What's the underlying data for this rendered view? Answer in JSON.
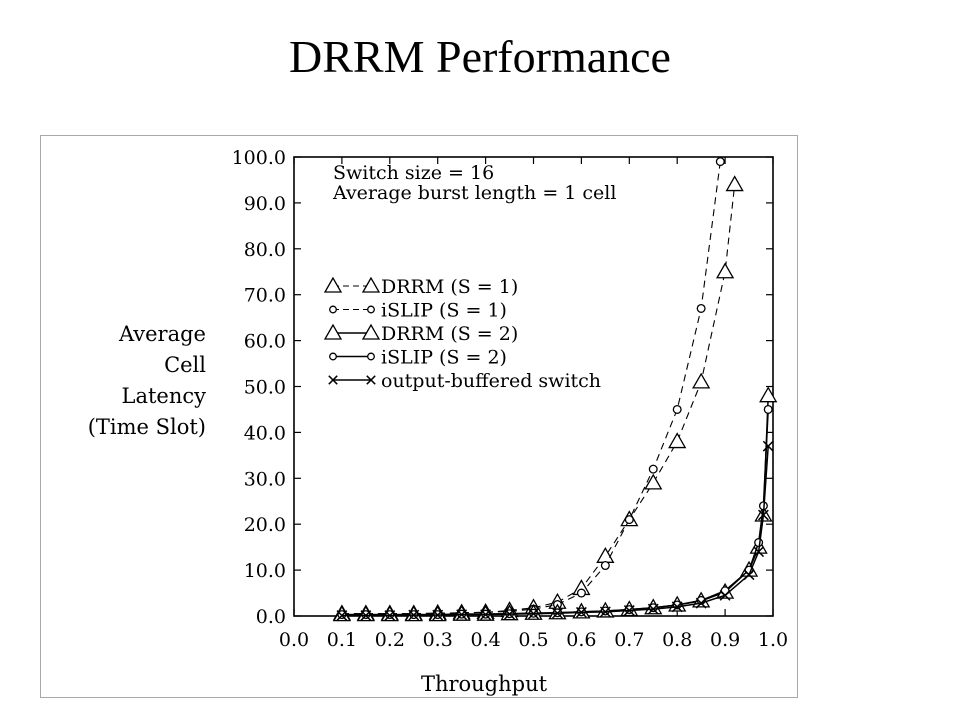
{
  "slide": {
    "title": "DRRM Performance"
  },
  "chart_data": {
    "type": "line",
    "title": "",
    "xlabel": "Throughput",
    "ylabel_lines": [
      "Average",
      "Cell",
      "Latency",
      "(Time Slot)"
    ],
    "xlim": [
      0.0,
      1.0
    ],
    "ylim": [
      0.0,
      100.0
    ],
    "x_ticks": [
      "0.0",
      "0.1",
      "0.2",
      "0.3",
      "0.4",
      "0.5",
      "0.6",
      "0.7",
      "0.8",
      "0.9",
      "1.0"
    ],
    "y_ticks": [
      "0.0",
      "10.0",
      "20.0",
      "30.0",
      "40.0",
      "50.0",
      "60.0",
      "70.0",
      "80.0",
      "90.0",
      "100.0"
    ],
    "grid": false,
    "annotations": [
      "Switch size = 16",
      "Average burst length = 1 cell"
    ],
    "legend_position": "upper-left",
    "series": [
      {
        "name": "DRRM (S = 1)",
        "marker": "triangle",
        "dashed": true,
        "x": [
          0.1,
          0.15,
          0.2,
          0.25,
          0.3,
          0.35,
          0.4,
          0.45,
          0.5,
          0.55,
          0.6,
          0.65,
          0.7,
          0.75,
          0.8,
          0.85,
          0.9,
          0.92
        ],
        "y": [
          0.5,
          0.5,
          0.5,
          0.5,
          0.6,
          0.7,
          0.8,
          1.2,
          1.8,
          3.0,
          6.0,
          13.0,
          21.0,
          29.0,
          38.0,
          51.0,
          75.0,
          94.0
        ]
      },
      {
        "name": "iSLIP (S = 1)",
        "marker": "circle",
        "dashed": true,
        "x": [
          0.1,
          0.15,
          0.2,
          0.25,
          0.3,
          0.35,
          0.4,
          0.45,
          0.5,
          0.55,
          0.6,
          0.65,
          0.7,
          0.75,
          0.8,
          0.85,
          0.89
        ],
        "y": [
          0.5,
          0.5,
          0.5,
          0.5,
          0.6,
          0.7,
          0.8,
          1.0,
          1.5,
          2.5,
          5.0,
          11.0,
          21.0,
          32.0,
          45.0,
          67.0,
          99.0
        ]
      },
      {
        "name": "DRRM (S = 2)",
        "marker": "triangle",
        "dashed": false,
        "x": [
          0.1,
          0.15,
          0.2,
          0.25,
          0.3,
          0.35,
          0.4,
          0.45,
          0.5,
          0.55,
          0.6,
          0.65,
          0.7,
          0.75,
          0.8,
          0.85,
          0.9,
          0.95,
          0.97,
          0.98,
          0.99
        ],
        "y": [
          0.3,
          0.3,
          0.3,
          0.3,
          0.3,
          0.4,
          0.4,
          0.5,
          0.6,
          0.7,
          0.9,
          1.1,
          1.4,
          1.8,
          2.4,
          3.3,
          5.2,
          10.0,
          15.0,
          22.0,
          48.0
        ]
      },
      {
        "name": "iSLIP (S = 2)",
        "marker": "circle",
        "dashed": false,
        "x": [
          0.1,
          0.15,
          0.2,
          0.25,
          0.3,
          0.35,
          0.4,
          0.45,
          0.5,
          0.55,
          0.6,
          0.65,
          0.7,
          0.75,
          0.8,
          0.85,
          0.9,
          0.95,
          0.97,
          0.98,
          0.99
        ],
        "y": [
          0.3,
          0.3,
          0.3,
          0.3,
          0.3,
          0.4,
          0.4,
          0.5,
          0.6,
          0.7,
          0.9,
          1.1,
          1.4,
          1.8,
          2.4,
          3.4,
          5.5,
          10.0,
          16.0,
          24.0,
          45.0
        ]
      },
      {
        "name": "output-buffered switch",
        "marker": "cross",
        "dashed": false,
        "x": [
          0.1,
          0.15,
          0.2,
          0.25,
          0.3,
          0.35,
          0.4,
          0.45,
          0.5,
          0.55,
          0.6,
          0.65,
          0.7,
          0.75,
          0.8,
          0.85,
          0.9,
          0.95,
          0.97,
          0.98,
          0.99
        ],
        "y": [
          0.1,
          0.1,
          0.1,
          0.2,
          0.2,
          0.3,
          0.3,
          0.4,
          0.5,
          0.6,
          0.8,
          0.9,
          1.2,
          1.5,
          2.0,
          2.8,
          4.5,
          9.0,
          14.0,
          22.0,
          37.0
        ]
      }
    ]
  }
}
